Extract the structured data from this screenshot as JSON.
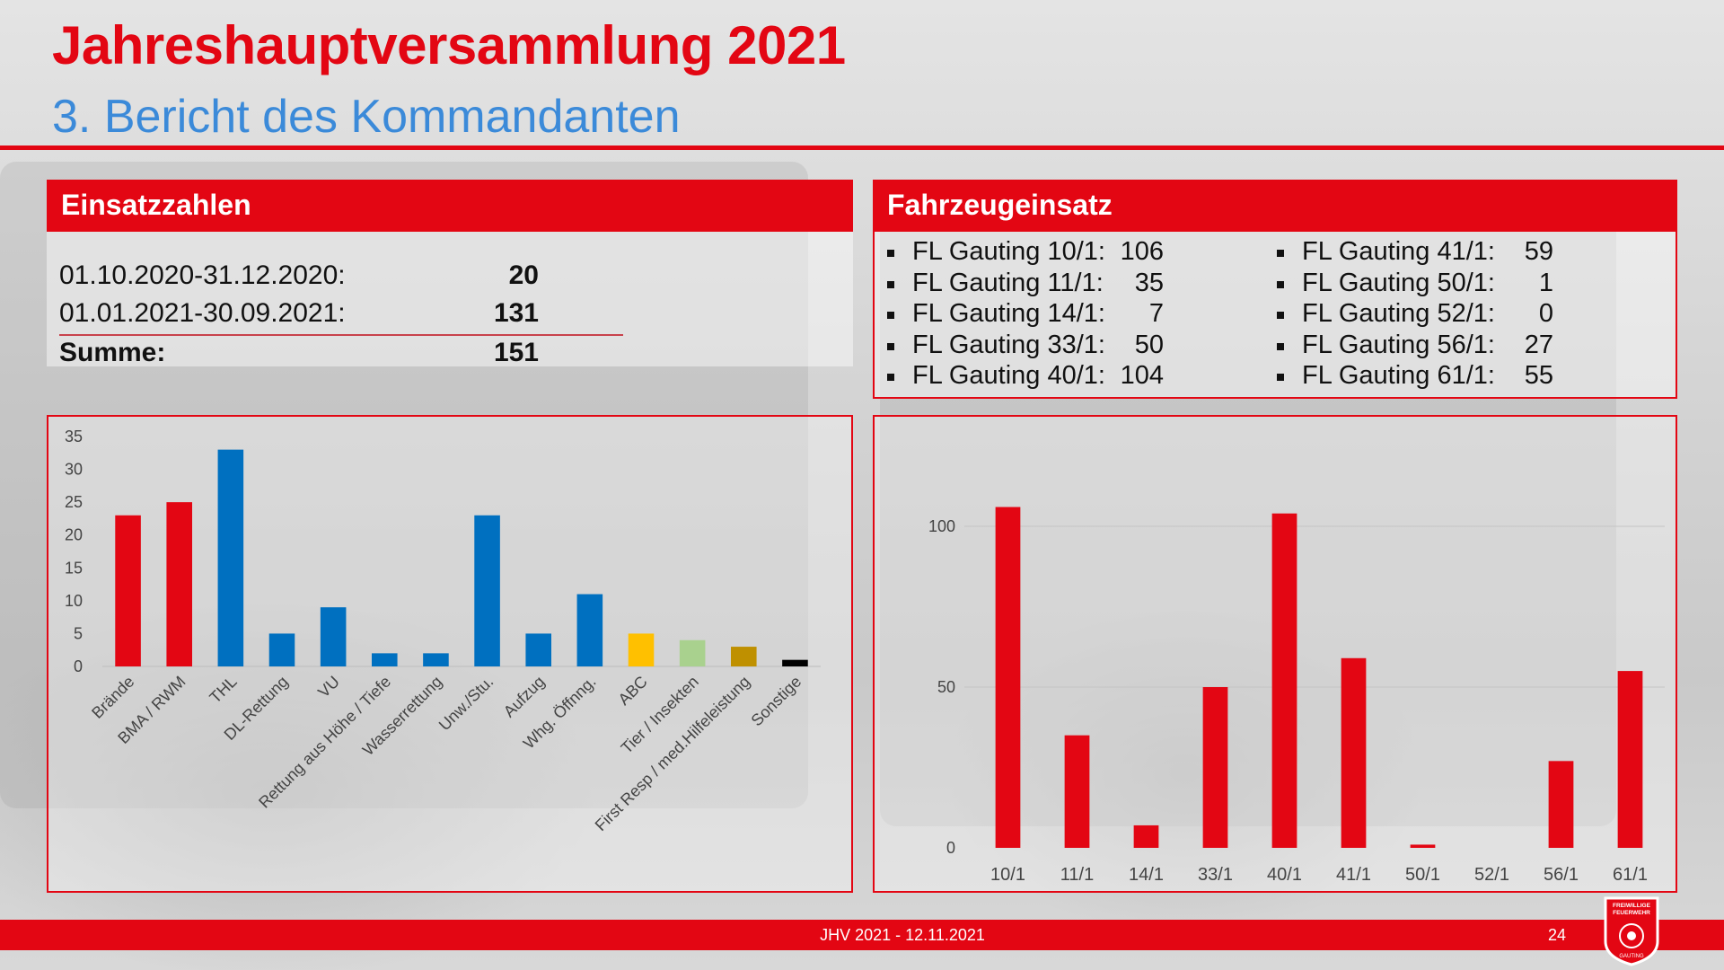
{
  "header": {
    "title": "Jahreshauptversammlung 2021",
    "subtitle": "3. Bericht des Kommandanten"
  },
  "einsatzzahlen": {
    "heading": "Einsatzzahlen",
    "rows": [
      {
        "label": "01.10.2020-31.12.2020:",
        "value": "20"
      },
      {
        "label": "01.01.2021-30.09.2021:",
        "value": "131"
      }
    ],
    "sum": {
      "label": "Summe:",
      "value": "151"
    }
  },
  "fahrzeugeinsatz": {
    "heading": "Fahrzeugeinsatz",
    "left": [
      {
        "label": "FL Gauting 10/1:",
        "value": "106"
      },
      {
        "label": "FL Gauting 11/1:",
        "value": "35"
      },
      {
        "label": "FL Gauting 14/1:",
        "value": "7"
      },
      {
        "label": "FL Gauting 33/1:",
        "value": "50"
      },
      {
        "label": "FL Gauting 40/1:",
        "value": "104"
      }
    ],
    "right": [
      {
        "label": "FL Gauting 41/1:",
        "value": "59"
      },
      {
        "label": "FL Gauting 50/1:",
        "value": "1"
      },
      {
        "label": "FL Gauting 52/1:",
        "value": "0"
      },
      {
        "label": "FL Gauting 56/1:",
        "value": "27"
      },
      {
        "label": "FL Gauting 61/1:",
        "value": "55"
      }
    ]
  },
  "chart_data": [
    {
      "type": "bar",
      "categories": [
        "Brände",
        "BMA / RWM",
        "THL",
        "DL-Rettung",
        "VU",
        "Rettung aus Höhe / Tiefe",
        "Wasserrettung",
        "Unw./Stu.",
        "Aufzug",
        "Whg. Öffnng.",
        "ABC",
        "Tier / Insekten",
        "First Resp / med.Hilfeleistung",
        "Sonstige"
      ],
      "values": [
        23,
        25,
        33,
        5,
        9,
        2,
        2,
        23,
        5,
        11,
        5,
        4,
        3,
        1
      ],
      "colors": [
        "#e30613",
        "#e30613",
        "#0070c0",
        "#0070c0",
        "#0070c0",
        "#0070c0",
        "#0070c0",
        "#0070c0",
        "#0070c0",
        "#0070c0",
        "#ffc000",
        "#a9d18e",
        "#bf9000",
        "#000000"
      ],
      "yticks": [
        0,
        5,
        10,
        15,
        20,
        25,
        30,
        35
      ],
      "ylim": [
        0,
        35
      ],
      "grid": false
    },
    {
      "type": "bar",
      "categories": [
        "10/1",
        "11/1",
        "14/1",
        "33/1",
        "40/1",
        "41/1",
        "50/1",
        "52/1",
        "56/1",
        "61/1"
      ],
      "values": [
        106,
        35,
        7,
        50,
        104,
        59,
        1,
        0,
        27,
        55
      ],
      "color": "#e30613",
      "yticks": [
        0,
        50,
        100
      ],
      "ylim": [
        0,
        120
      ],
      "grid": true
    }
  ],
  "footer": {
    "text": "JHV 2021 - 12.11.2021",
    "page": "24"
  },
  "logo": {
    "top_text": "FREIWILLIGE FEUERWEHR",
    "bottom_text": "GAUTING"
  }
}
